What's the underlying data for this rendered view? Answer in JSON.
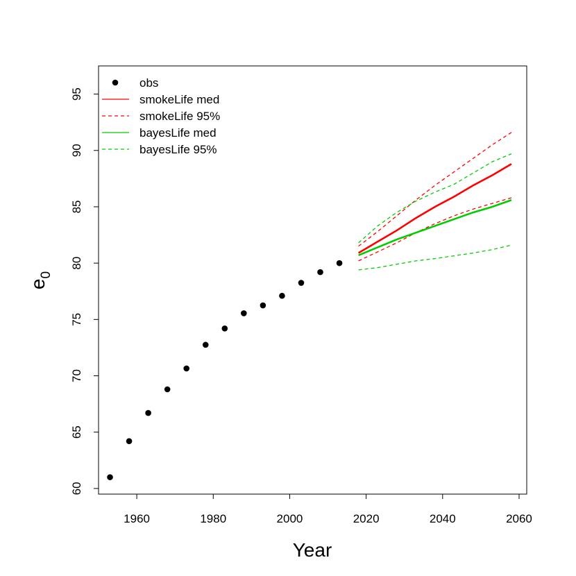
{
  "chart_data": {
    "type": "line",
    "xlabel": "Year",
    "ylabel": "e",
    "ylabel_subscript": "0",
    "xlim": [
      1950,
      2062
    ],
    "ylim": [
      59.5,
      97.5
    ],
    "xticks": [
      1960,
      1980,
      2000,
      2020,
      2040,
      2060
    ],
    "yticks": [
      60,
      65,
      70,
      75,
      80,
      85,
      90,
      95
    ],
    "legend_position": "top-left",
    "colors": {
      "obs": "#000000",
      "smokeLife": "#ff0000",
      "bayesLife": "#00cd00"
    },
    "obs": {
      "name": "obs",
      "x": [
        1953,
        1958,
        1963,
        1968,
        1973,
        1978,
        1983,
        1988,
        1993,
        1998,
        2003,
        2008,
        2013
      ],
      "y": [
        61.0,
        64.2,
        66.7,
        68.8,
        70.65,
        72.75,
        74.2,
        75.55,
        76.25,
        77.1,
        78.25,
        79.2,
        80.0
      ]
    },
    "series": [
      {
        "name": "smokeLife med",
        "style": "solid",
        "color": "#ff0000",
        "x": [
          2018,
          2023,
          2028,
          2033,
          2038,
          2043,
          2048,
          2053,
          2058
        ],
        "y": [
          80.9,
          81.9,
          82.9,
          84.0,
          85.0,
          85.9,
          86.9,
          87.8,
          88.8
        ]
      },
      {
        "name": "smokeLife 95%",
        "style": "dashed",
        "color": "#ff0000",
        "bands": [
          {
            "x": [
              2018,
              2023,
              2028,
              2033,
              2038,
              2043,
              2048,
              2053,
              2058
            ],
            "y": [
              81.5,
              82.8,
              84.2,
              85.6,
              86.9,
              88.1,
              89.3,
              90.5,
              91.6
            ]
          },
          {
            "x": [
              2018,
              2023,
              2028,
              2033,
              2038,
              2043,
              2048,
              2053,
              2058
            ],
            "y": [
              80.2,
              81.0,
              81.8,
              82.7,
              83.5,
              84.2,
              84.8,
              85.3,
              85.8
            ]
          }
        ]
      },
      {
        "name": "bayesLife med",
        "style": "solid",
        "color": "#00cd00",
        "x": [
          2018,
          2023,
          2028,
          2033,
          2038,
          2043,
          2048,
          2053,
          2058
        ],
        "y": [
          80.7,
          81.4,
          82.1,
          82.7,
          83.3,
          83.9,
          84.5,
          85.0,
          85.6
        ]
      },
      {
        "name": "bayesLife 95%",
        "style": "dashed",
        "color": "#00cd00",
        "bands": [
          {
            "x": [
              2018,
              2023,
              2028,
              2033,
              2038,
              2043,
              2048,
              2053,
              2058
            ],
            "y": [
              81.8,
              83.3,
              84.5,
              85.5,
              86.3,
              87.0,
              88.0,
              89.0,
              89.7
            ]
          },
          {
            "x": [
              2018,
              2023,
              2028,
              2033,
              2038,
              2043,
              2048,
              2053,
              2058
            ],
            "y": [
              79.4,
              79.6,
              79.9,
              80.2,
              80.4,
              80.65,
              80.9,
              81.2,
              81.6
            ]
          }
        ]
      }
    ],
    "legend": [
      {
        "label": "obs",
        "kind": "point",
        "color": "#000000"
      },
      {
        "label": "smokeLife med",
        "kind": "solid",
        "color": "#ff0000"
      },
      {
        "label": "smokeLife 95%",
        "kind": "dashed",
        "color": "#ff0000"
      },
      {
        "label": "bayesLife med",
        "kind": "solid",
        "color": "#00cd00"
      },
      {
        "label": "bayesLife 95%",
        "kind": "dashed",
        "color": "#00cd00"
      }
    ]
  }
}
